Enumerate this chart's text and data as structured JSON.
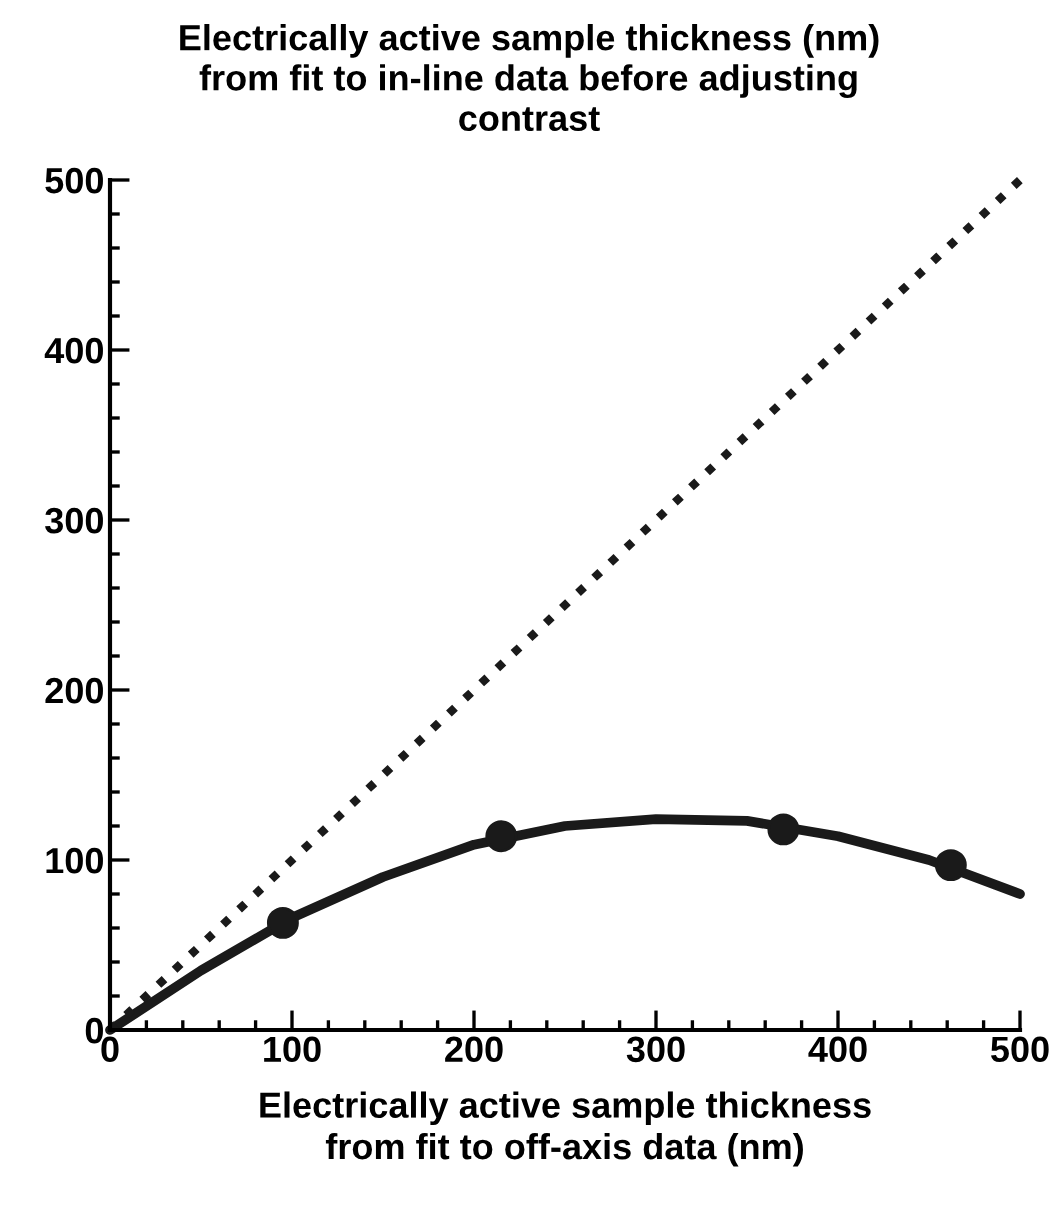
{
  "chart_data": {
    "type": "scatter",
    "title": "Electrically active sample thickness (nm)\nfrom fit to in-line data before adjusting\ncontrast",
    "xlabel": "Electrically active sample thickness\nfrom fit to off-axis data (nm)",
    "xlim": [
      0,
      500
    ],
    "ylim": [
      0,
      500
    ],
    "xticks": [
      0,
      100,
      200,
      300,
      400,
      500
    ],
    "yticks": [
      0,
      100,
      200,
      300,
      400,
      500
    ],
    "grid": false,
    "legend": false,
    "series": [
      {
        "color": "#1a1a1a",
        "marker": "circle",
        "x": [
          95,
          215,
          370,
          462
        ],
        "values": [
          63,
          114,
          118,
          97
        ]
      },
      {
        "type": "line",
        "color": "#1a1a1a",
        "marker": "none",
        "line_style": "solid",
        "x": [
          0,
          50,
          100,
          150,
          200,
          250,
          300,
          350,
          400,
          450,
          500
        ],
        "values": [
          0,
          35,
          66,
          90,
          109,
          120,
          124,
          123,
          114,
          100,
          80
        ]
      },
      {
        "type": "line",
        "color": "#1a1a1a",
        "marker": "none",
        "line_style": "dotted",
        "x": [
          0,
          500
        ],
        "values": [
          0,
          500
        ]
      }
    ]
  }
}
